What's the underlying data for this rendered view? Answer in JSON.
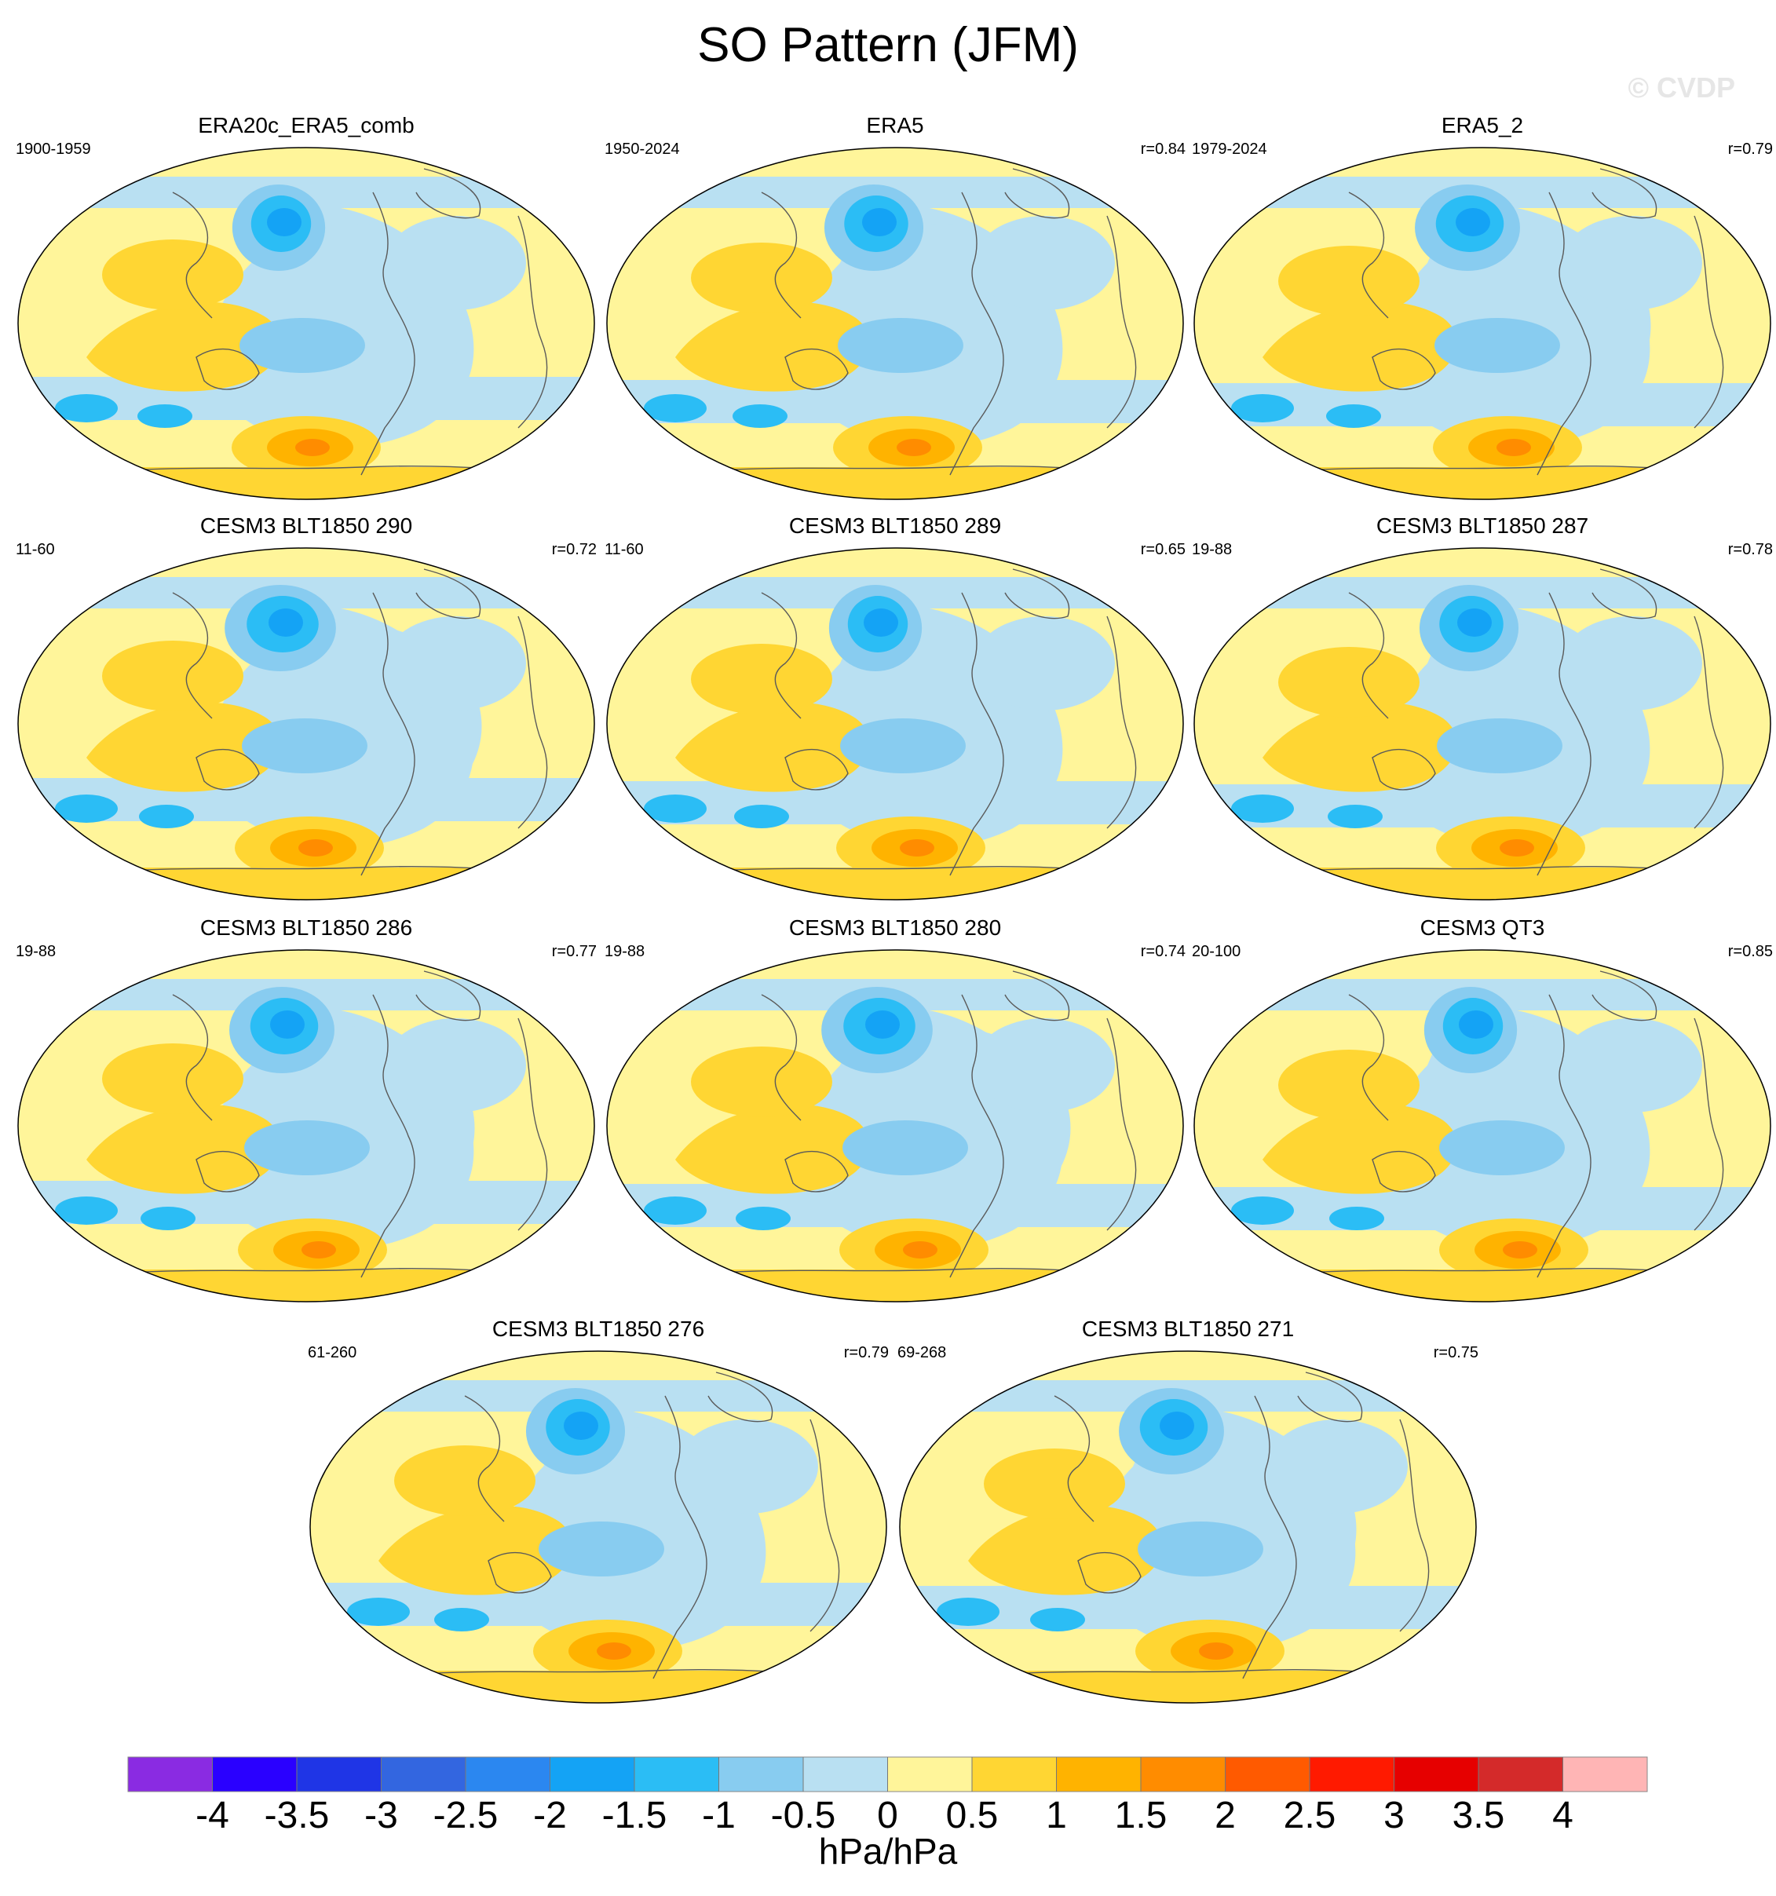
{
  "title": "SO Pattern (JFM)",
  "watermark": "© CVDP",
  "chart_data": {
    "type": "map-panels",
    "variable": "SO pattern regression",
    "units": "hPa/hPa",
    "panels": [
      {
        "title": "ERA20c_ERA5_comb",
        "period": "1900-1959",
        "r": ""
      },
      {
        "title": "ERA5",
        "period": "1950-2024",
        "r": "r=0.84"
      },
      {
        "title": "ERA5_2",
        "period": "1979-2024",
        "r": "r=0.79"
      },
      {
        "title": "CESM3 BLT1850 290",
        "period": "11-60",
        "r": "r=0.72"
      },
      {
        "title": "CESM3 BLT1850 289",
        "period": "11-60",
        "r": "r=0.65"
      },
      {
        "title": "CESM3 BLT1850 287",
        "period": "19-88",
        "r": "r=0.78"
      },
      {
        "title": "CESM3 BLT1850 286",
        "period": "19-88",
        "r": "r=0.77"
      },
      {
        "title": "CESM3 BLT1850 280",
        "period": "19-88",
        "r": "r=0.74"
      },
      {
        "title": "CESM3 QT3",
        "period": "20-100",
        "r": "r=0.85"
      },
      {
        "title": "CESM3 BLT1850 276",
        "period": "61-260",
        "r": "r=0.79"
      },
      {
        "title": "CESM3 BLT1850 271",
        "period": "69-268",
        "r": "r=0.75"
      }
    ],
    "colorbar": {
      "labels": [
        "-4",
        "-3.5",
        "-3",
        "-2.5",
        "-2",
        "-1.5",
        "-1",
        "-0.5",
        "0",
        "0.5",
        "1",
        "1.5",
        "2",
        "2.5",
        "3",
        "3.5",
        "4"
      ],
      "colors": [
        "#8a2be2",
        "#2a00ff",
        "#1f35e6",
        "#3366e0",
        "#2b87f0",
        "#14a3f5",
        "#2bbdf5",
        "#88ccf0",
        "#b9e0f2",
        "#fff59a",
        "#ffd633",
        "#ffb300",
        "#ff8c00",
        "#ff5a00",
        "#ff1a00",
        "#e60000",
        "#d42a2a",
        "#ffb5b5"
      ]
    }
  }
}
